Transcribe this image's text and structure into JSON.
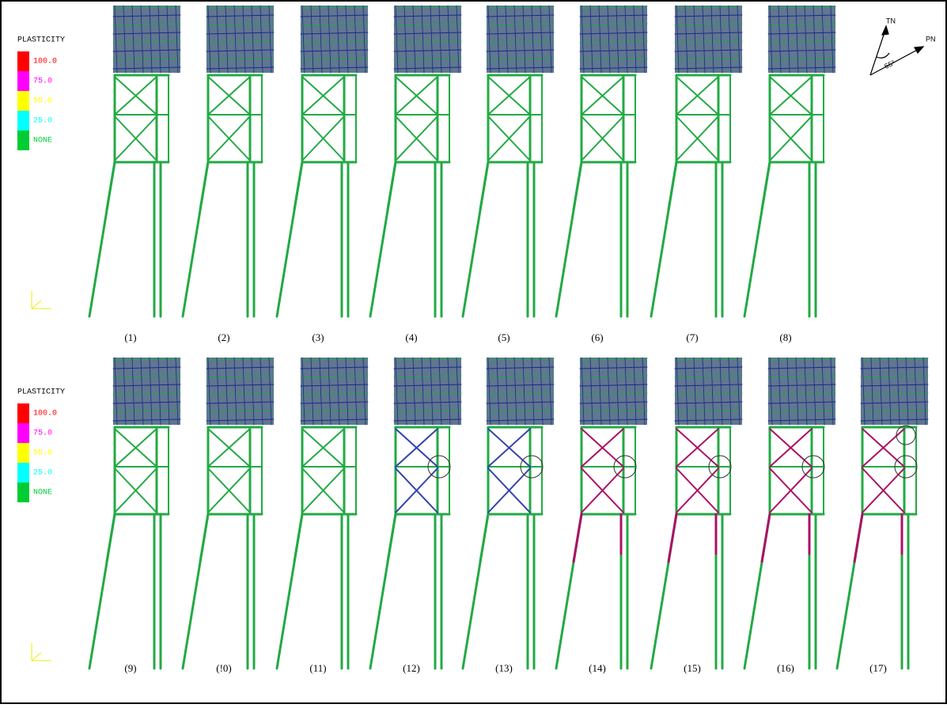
{
  "legends": [
    {
      "title": "PLASTICITY",
      "items": [
        {
          "label": "100.0",
          "color": "#ff0000"
        },
        {
          "label": "75.0",
          "color": "#ff00ff"
        },
        {
          "label": "50.0",
          "color": "#ffff00"
        },
        {
          "label": "25.0",
          "color": "#00ffff"
        },
        {
          "label": "NONE",
          "color": "#00cc33"
        }
      ]
    },
    {
      "title": "PLASTICITY",
      "items": [
        {
          "label": "100.0",
          "color": "#ff0000"
        },
        {
          "label": "75.0",
          "color": "#ff00ff"
        },
        {
          "label": "50.0",
          "color": "#ffff00"
        },
        {
          "label": "25.0",
          "color": "#00ffff"
        },
        {
          "label": "NONE",
          "color": "#00cc33"
        }
      ]
    }
  ],
  "panels": [
    [
      "(1)",
      "(2)",
      "(3)",
      "(4)",
      "(5)",
      "(6)",
      "(7)",
      "(8)"
    ],
    [
      "(9)",
      "(!0)",
      "(11)",
      "(12)",
      "(13)",
      "(14)",
      "(15)",
      "(16)",
      "(17)"
    ]
  ],
  "compass": {
    "north": "TN",
    "east": "PN",
    "angle": "65°"
  }
}
